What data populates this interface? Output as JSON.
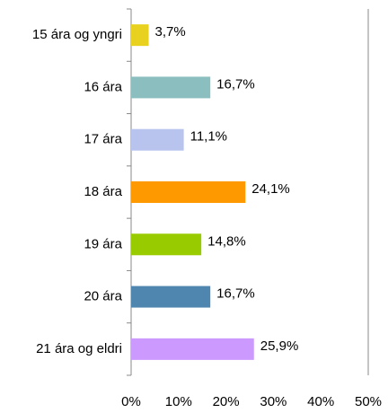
{
  "chart_data": {
    "type": "bar",
    "orientation": "horizontal",
    "categories": [
      "15 ára og yngri",
      "16 ára",
      "17 ára",
      "18 ára",
      "19 ára",
      "20 ára",
      "21 ára og eldri"
    ],
    "values": [
      3.7,
      16.7,
      11.1,
      24.1,
      14.8,
      16.7,
      25.9
    ],
    "value_labels": [
      "3,7%",
      "16,7%",
      "11,1%",
      "24,1%",
      "14,8%",
      "16,7%",
      "25,9%"
    ],
    "colors": [
      "#e8d21f",
      "#8bbfbf",
      "#b8c4ee",
      "#ff9900",
      "#99cc00",
      "#4f86b0",
      "#cc99ff"
    ],
    "xlim": [
      0,
      50
    ],
    "xticks": [
      {
        "value": 0,
        "label": "0%"
      },
      {
        "value": 10,
        "label": "10%"
      },
      {
        "value": 20,
        "label": "20%"
      },
      {
        "value": 30,
        "label": "30%"
      },
      {
        "value": 40,
        "label": "40%"
      },
      {
        "value": 50,
        "label": "50%"
      }
    ],
    "grid": false
  }
}
